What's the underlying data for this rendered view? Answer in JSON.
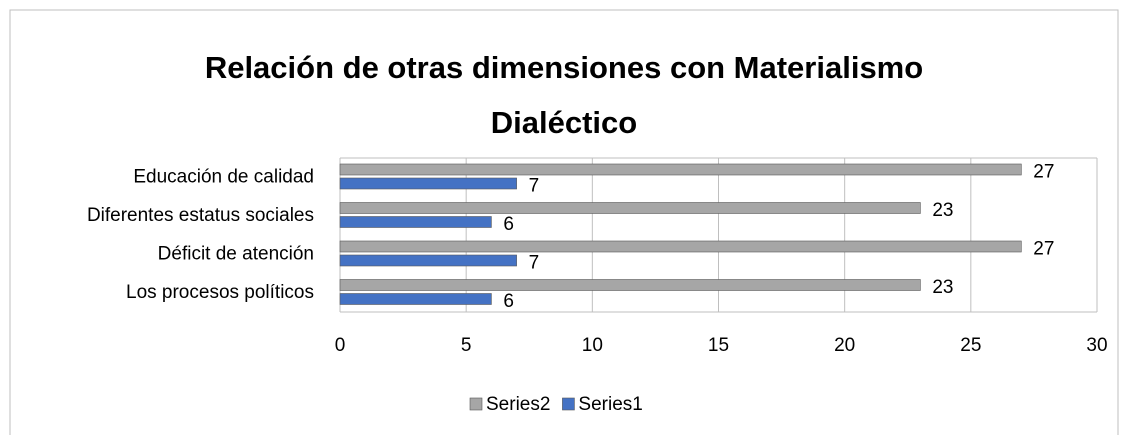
{
  "chart_data": {
    "type": "hbar",
    "title": "Relación de otras dimensiones con Materialismo Dialéctico",
    "categories": [
      "Educación de calidad",
      "Diferentes estatus sociales",
      "Déficit de atención",
      "Los procesos políticos"
    ],
    "series": [
      {
        "name": "Series2",
        "color": "#a6a6a6",
        "values": [
          27,
          23,
          27,
          23
        ]
      },
      {
        "name": "Series1",
        "color": "#4472c4",
        "values": [
          7,
          6,
          7,
          6
        ]
      }
    ],
    "xlim": [
      0,
      30
    ],
    "xticks": [
      0,
      5,
      10,
      15,
      20,
      25,
      30
    ],
    "grid": true,
    "legend": "bottom"
  }
}
